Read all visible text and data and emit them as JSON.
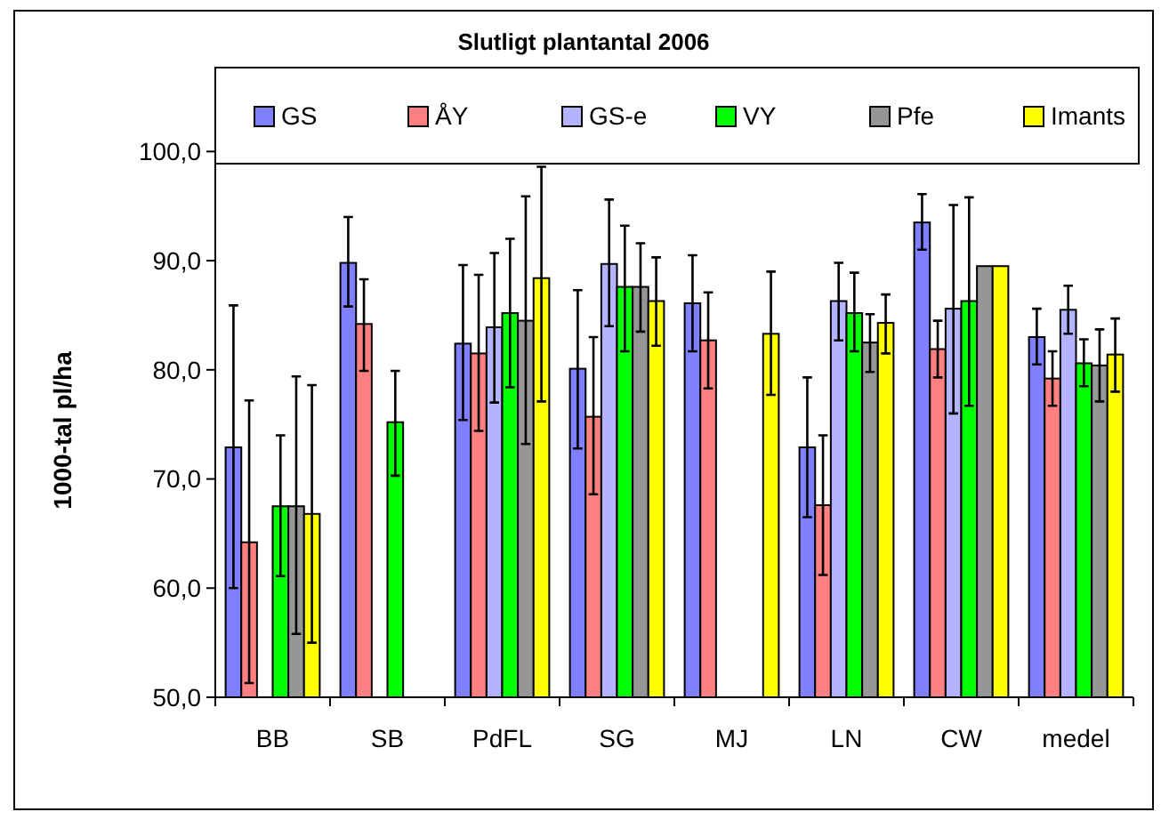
{
  "chart_data": {
    "type": "bar",
    "title": "Slutligt plantantal 2006",
    "ylabel": "1000-tal pl/ha",
    "categories": [
      "BB",
      "SB",
      "PdFL",
      "SG",
      "MJ",
      "LN",
      "CW",
      "medel"
    ],
    "ylim": [
      50,
      105
    ],
    "yticks": [
      {
        "value": 50,
        "label": "50,0"
      },
      {
        "value": 60,
        "label": "60,0"
      },
      {
        "value": 70,
        "label": "70,0"
      },
      {
        "value": 80,
        "label": "80,0"
      },
      {
        "value": 90,
        "label": "90,0"
      },
      {
        "value": 100,
        "label": "100,0"
      }
    ],
    "grid": false,
    "legend": "top",
    "series": [
      {
        "name": "GS",
        "color": "#8080ff",
        "values": [
          72.9,
          89.8,
          82.4,
          80.1,
          86.1,
          72.9,
          93.5,
          83.0
        ],
        "errors": [
          [
            60.0,
            85.9
          ],
          [
            85.8,
            94.0
          ],
          [
            75.4,
            89.6
          ],
          [
            72.8,
            87.3
          ],
          [
            81.7,
            90.5
          ],
          [
            66.5,
            79.3
          ],
          [
            91.0,
            96.1
          ],
          [
            80.5,
            85.6
          ]
        ]
      },
      {
        "name": "ÅY",
        "color": "#ff8080",
        "values": [
          64.2,
          84.2,
          81.5,
          75.7,
          82.7,
          67.6,
          81.9,
          79.2
        ],
        "errors": [
          [
            51.3,
            77.2
          ],
          [
            79.9,
            88.3
          ],
          [
            74.4,
            88.7
          ],
          [
            68.6,
            83.0
          ],
          [
            78.3,
            87.1
          ],
          [
            61.2,
            74.0
          ],
          [
            79.3,
            84.5
          ],
          [
            76.7,
            81.7
          ]
        ]
      },
      {
        "name": "GS-e",
        "color": "#b3b3ff",
        "values": [
          null,
          null,
          83.9,
          89.7,
          null,
          86.3,
          85.6,
          85.5
        ],
        "errors": [
          null,
          null,
          [
            77.0,
            90.7
          ],
          [
            84.0,
            95.6
          ],
          null,
          [
            82.7,
            89.8
          ],
          [
            76.0,
            95.1
          ],
          [
            83.3,
            87.7
          ]
        ]
      },
      {
        "name": "VY",
        "color": "#00ff00",
        "values": [
          67.5,
          75.2,
          85.2,
          87.6,
          null,
          85.2,
          86.3,
          80.6
        ],
        "errors": [
          [
            61.1,
            74.0
          ],
          [
            70.3,
            79.9
          ],
          [
            78.4,
            92.0
          ],
          [
            81.7,
            93.2
          ],
          null,
          [
            81.7,
            88.9
          ],
          [
            76.7,
            95.8
          ],
          [
            78.5,
            82.8
          ]
        ]
      },
      {
        "name": "Pfe",
        "color": "#969696",
        "values": [
          67.5,
          null,
          84.5,
          87.6,
          null,
          82.5,
          89.5,
          80.4
        ],
        "errors": [
          [
            55.8,
            79.4
          ],
          null,
          [
            73.2,
            95.9
          ],
          [
            83.5,
            91.6
          ],
          null,
          [
            79.8,
            85.1
          ],
          null,
          [
            77.1,
            83.7
          ]
        ]
      },
      {
        "name": "Imants",
        "color": "#ffff00",
        "values": [
          66.8,
          null,
          88.4,
          86.3,
          83.3,
          84.3,
          89.5,
          81.4
        ],
        "errors": [
          [
            55.0,
            78.6
          ],
          null,
          [
            77.1,
            98.6
          ],
          [
            82.2,
            90.3
          ],
          [
            77.7,
            89.0
          ],
          [
            81.5,
            86.9
          ],
          null,
          [
            78.0,
            84.7
          ]
        ]
      }
    ]
  }
}
